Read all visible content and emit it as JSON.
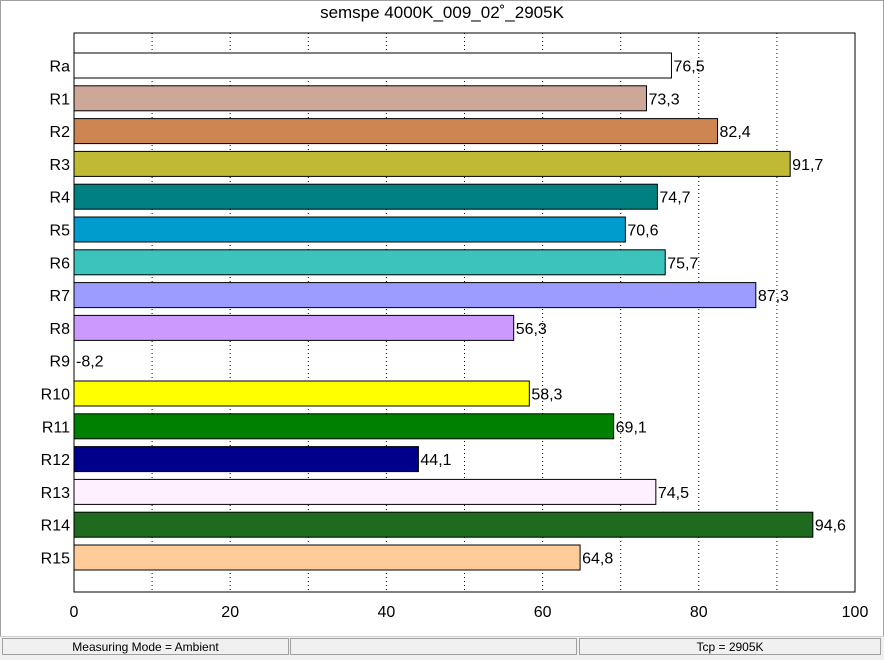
{
  "chart_data": {
    "type": "bar",
    "orientation": "horizontal",
    "title": "semspe 4000K_009_02˚_2905K",
    "xlabel": "",
    "ylabel": "",
    "xlim": [
      0,
      100
    ],
    "xticks": [
      0,
      20,
      40,
      60,
      80,
      100
    ],
    "grid": "vertical-dotted",
    "categories": [
      "Ra",
      "R1",
      "R2",
      "R3",
      "R4",
      "R5",
      "R6",
      "R7",
      "R8",
      "R9",
      "R10",
      "R11",
      "R12",
      "R13",
      "R14",
      "R15"
    ],
    "values": [
      76.5,
      73.3,
      82.4,
      91.7,
      74.7,
      70.6,
      75.7,
      87.3,
      56.3,
      -8.2,
      58.3,
      69.1,
      44.1,
      74.5,
      94.6,
      64.8
    ],
    "value_labels": [
      "76,5",
      "73,3",
      "82,4",
      "91,7",
      "74,7",
      "70,6",
      "75,7",
      "87,3",
      "56,3",
      "-8,2",
      "58,3",
      "69,1",
      "44,1",
      "74,5",
      "94,6",
      "64,8"
    ],
    "colors": [
      "#ffffff",
      "#cda898",
      "#cd8552",
      "#c0b935",
      "#008080",
      "#009ccd",
      "#3cc4bc",
      "#9c9cff",
      "#cc99ff",
      "#ff0000",
      "#ffff00",
      "#008000",
      "#00008b",
      "#fff0ff",
      "#1e6a1e",
      "#ffcc99"
    ]
  },
  "status_bar": {
    "measuring_mode": "Measuring Mode = Ambient",
    "cell2": "",
    "cell3": "",
    "tcp": "Tcp = 2905K"
  }
}
